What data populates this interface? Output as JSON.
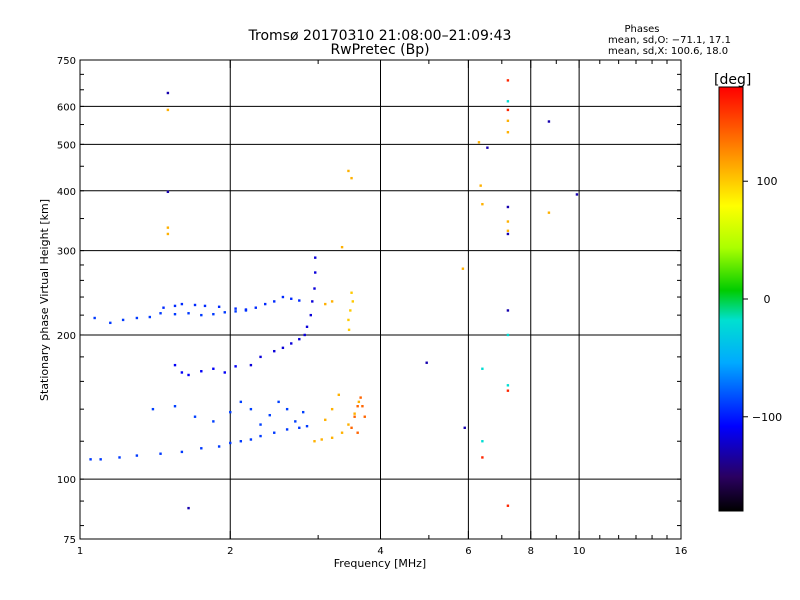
{
  "chart_data": {
    "type": "scatter",
    "title": "Tromsø 20170310 21:08:00–21:09:43",
    "subtitle": "RwPretec (Bp)",
    "xlabel": "Frequency [MHz]",
    "ylabel": "Stationary phase Virtual Height [km]",
    "x_scale": "log",
    "y_scale": "log",
    "xlim": [
      1,
      16
    ],
    "ylim": [
      75,
      750
    ],
    "x_ticks": [
      "1",
      "2",
      "4",
      "6",
      "8",
      "10",
      "16"
    ],
    "y_ticks": [
      "750",
      "600",
      "500",
      "400",
      "300",
      "200",
      "100",
      "75"
    ],
    "grid": true,
    "legend": {
      "title": "Phases",
      "lines": [
        "mean, sd,O: −71.1, 17.1",
        "mean, sd,X: 100.6, 18.0"
      ]
    },
    "colorbar": {
      "label": "[deg]",
      "range": [
        -180,
        180
      ],
      "ticks": [
        "100",
        "0",
        "−100"
      ]
    },
    "series": [
      {
        "values": [
          [
            1.07,
            217
          ],
          [
            1.15,
            212
          ],
          [
            1.22,
            215
          ],
          [
            1.3,
            217
          ],
          [
            1.38,
            218
          ],
          [
            1.45,
            222
          ],
          [
            1.55,
            221
          ],
          [
            1.65,
            222
          ],
          [
            1.75,
            220
          ],
          [
            1.85,
            221
          ],
          [
            1.95,
            223
          ],
          [
            2.05,
            224
          ],
          [
            2.15,
            225
          ]
        ],
        "phase": -90
      },
      {
        "values": [
          [
            1.47,
            228
          ],
          [
            1.55,
            230
          ],
          [
            1.6,
            232
          ],
          [
            1.7,
            231
          ],
          [
            1.78,
            230
          ],
          [
            1.9,
            229
          ],
          [
            2.05,
            227
          ],
          [
            2.15,
            226
          ],
          [
            2.25,
            228
          ],
          [
            2.35,
            232
          ],
          [
            2.45,
            235
          ],
          [
            2.55,
            240
          ],
          [
            2.65,
            238
          ],
          [
            2.75,
            236
          ]
        ],
        "phase": -95
      },
      {
        "values": [
          [
            1.05,
            110
          ],
          [
            1.1,
            110
          ],
          [
            1.2,
            111
          ],
          [
            1.3,
            112
          ],
          [
            1.45,
            113
          ],
          [
            1.6,
            114
          ],
          [
            1.75,
            116
          ],
          [
            1.9,
            117
          ],
          [
            2.0,
            119
          ],
          [
            2.1,
            120
          ],
          [
            2.2,
            121
          ],
          [
            2.3,
            123
          ],
          [
            2.45,
            125
          ],
          [
            2.6,
            127
          ],
          [
            2.75,
            128
          ],
          [
            2.85,
            129
          ]
        ],
        "phase": -90
      },
      {
        "values": [
          [
            1.4,
            140
          ],
          [
            1.55,
            142
          ],
          [
            1.7,
            135
          ],
          [
            1.85,
            132
          ],
          [
            2.0,
            138
          ],
          [
            2.1,
            145
          ],
          [
            2.2,
            140
          ],
          [
            2.3,
            130
          ],
          [
            2.4,
            136
          ],
          [
            2.5,
            145
          ],
          [
            2.6,
            140
          ],
          [
            2.7,
            132
          ],
          [
            2.8,
            138
          ]
        ],
        "phase": -88
      },
      {
        "values": [
          [
            1.55,
            173
          ],
          [
            1.6,
            167
          ],
          [
            1.65,
            165
          ],
          [
            1.75,
            168
          ],
          [
            1.85,
            170
          ],
          [
            1.95,
            167
          ],
          [
            2.05,
            172
          ]
        ],
        "phase": -110
      },
      {
        "values": [
          [
            2.2,
            173
          ],
          [
            2.3,
            180
          ],
          [
            2.45,
            185
          ],
          [
            2.55,
            188
          ],
          [
            2.65,
            192
          ],
          [
            2.75,
            196
          ],
          [
            2.82,
            200
          ],
          [
            2.85,
            208
          ],
          [
            2.9,
            220
          ],
          [
            2.92,
            235
          ],
          [
            2.95,
            250
          ],
          [
            2.96,
            270
          ],
          [
            2.96,
            290
          ]
        ],
        "phase": -118
      },
      {
        "values": [
          [
            2.95,
            120
          ],
          [
            3.05,
            121
          ],
          [
            3.2,
            122
          ],
          [
            3.35,
            125
          ],
          [
            3.45,
            130
          ],
          [
            3.55,
            137
          ],
          [
            3.62,
            145
          ],
          [
            3.2,
            140
          ],
          [
            3.3,
            150
          ],
          [
            3.1,
            133
          ]
        ],
        "phase": 110
      },
      {
        "values": [
          [
            3.5,
            128
          ],
          [
            3.55,
            135
          ],
          [
            3.6,
            142
          ],
          [
            3.65,
            148
          ],
          [
            3.68,
            142
          ],
          [
            3.72,
            135
          ],
          [
            3.6,
            125
          ]
        ],
        "phase": 140
      },
      {
        "values": [
          [
            3.45,
            215
          ],
          [
            3.48,
            225
          ],
          [
            3.52,
            235
          ],
          [
            3.5,
            245
          ],
          [
            3.46,
            205
          ]
        ],
        "phase": 100
      },
      {
        "values": [
          [
            3.1,
            232
          ],
          [
            3.2,
            235
          ],
          [
            3.35,
            305
          ],
          [
            3.45,
            440
          ],
          [
            3.5,
            425
          ],
          [
            1.5,
            335
          ],
          [
            1.5,
            325
          ],
          [
            1.5,
            590
          ],
          [
            5.85,
            275
          ],
          [
            8.7,
            360
          ],
          [
            6.3,
            505
          ],
          [
            6.35,
            410
          ],
          [
            6.4,
            375
          ],
          [
            7.2,
            560
          ],
          [
            7.2,
            530
          ],
          [
            7.2,
            345
          ],
          [
            7.2,
            330
          ]
        ],
        "phase": 110
      },
      {
        "values": [
          [
            1.5,
            640
          ],
          [
            1.5,
            398
          ],
          [
            1.65,
            87
          ],
          [
            4.95,
            175
          ],
          [
            5.9,
            128
          ],
          [
            6.55,
            492
          ],
          [
            7.2,
            370
          ],
          [
            7.2,
            325
          ],
          [
            7.2,
            225
          ],
          [
            9.9,
            393
          ],
          [
            8.7,
            558
          ]
        ],
        "phase": -130
      },
      {
        "values": [
          [
            6.4,
            170
          ],
          [
            6.4,
            120
          ],
          [
            7.2,
            157
          ],
          [
            7.2,
            615
          ],
          [
            7.2,
            200
          ]
        ],
        "phase": -20
      },
      {
        "values": [
          [
            6.4,
            111
          ],
          [
            7.2,
            153
          ],
          [
            7.2,
            88
          ],
          [
            7.2,
            680
          ],
          [
            7.2,
            590
          ]
        ],
        "phase": 165
      }
    ]
  }
}
